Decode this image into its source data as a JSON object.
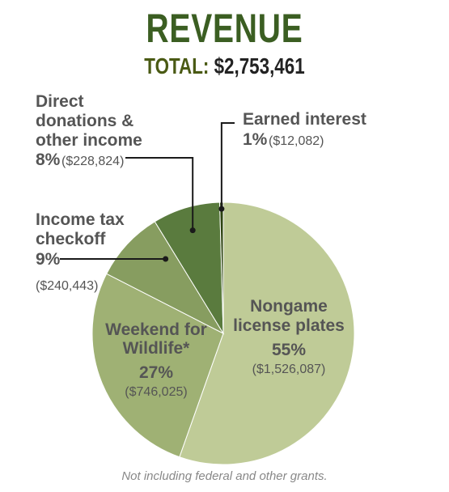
{
  "header": {
    "title": "REVENUE",
    "total_label": "TOTAL:",
    "total_value": "$2,753,461"
  },
  "footnote": "Not including federal and other grants.",
  "colors": {
    "title": "#3b5e22",
    "total_label": "#4a5a14",
    "slices": [
      "#bfcb97",
      "#9fb174",
      "#879d60",
      "#5a7b3e",
      "#2e4410"
    ],
    "text_dark": "#555555",
    "text_light": "#ffffff"
  },
  "chart_data": {
    "type": "pie",
    "title": "REVENUE",
    "subtitle": "TOTAL: $2,753,461",
    "total": 2753461,
    "slices": [
      {
        "label_lines": [
          "Nongame",
          "license plates"
        ],
        "percent_label": "55%",
        "amount_label": "($1,526,087)",
        "value": 1526087
      },
      {
        "label_lines": [
          "Weekend for",
          "Wildlife*"
        ],
        "percent_label": "27%",
        "amount_label": "($746,025)",
        "value": 746025
      },
      {
        "label_lines": [
          "Income tax",
          "checkoff"
        ],
        "percent_label": "9%",
        "amount_label": "($240,443)",
        "value": 240443
      },
      {
        "label_lines": [
          "Direct",
          "donations &",
          "other income"
        ],
        "percent_label": "8%",
        "amount_label": "($228,824)",
        "value": 228824
      },
      {
        "label_lines": [
          "Earned interest"
        ],
        "percent_label": "1%",
        "amount_label": "($12,082)",
        "value": 12082
      }
    ]
  }
}
